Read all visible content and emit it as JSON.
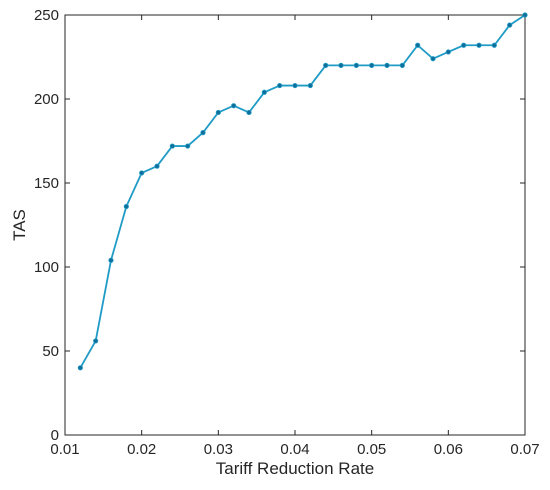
{
  "chart_data": {
    "type": "line",
    "title": "",
    "xlabel": "Tariff Reduction Rate",
    "ylabel": "TAS",
    "xlim": [
      0.01,
      0.07
    ],
    "ylim": [
      0,
      250
    ],
    "xticks": [
      "0.01",
      "0.02",
      "0.03",
      "0.04",
      "0.05",
      "0.06",
      "0.07"
    ],
    "yticks": [
      "0",
      "50",
      "100",
      "150",
      "200",
      "250"
    ],
    "grid": false,
    "line_color": "#1f9bc6",
    "series": [
      {
        "x": [
          0.012,
          0.014,
          0.016,
          0.018,
          0.02,
          0.022,
          0.024,
          0.026,
          0.028,
          0.03,
          0.032,
          0.034,
          0.036,
          0.038,
          0.04,
          0.042,
          0.044,
          0.046,
          0.048,
          0.05,
          0.052,
          0.054,
          0.056,
          0.058,
          0.06,
          0.062,
          0.064,
          0.066,
          0.068,
          0.07
        ],
        "values": [
          40,
          56,
          104,
          136,
          156,
          160,
          172,
          172,
          180,
          192,
          196,
          192,
          204,
          208,
          208,
          208,
          220,
          220,
          220,
          220,
          220,
          220,
          232,
          224,
          228,
          232,
          232,
          232,
          244,
          250
        ]
      }
    ]
  }
}
